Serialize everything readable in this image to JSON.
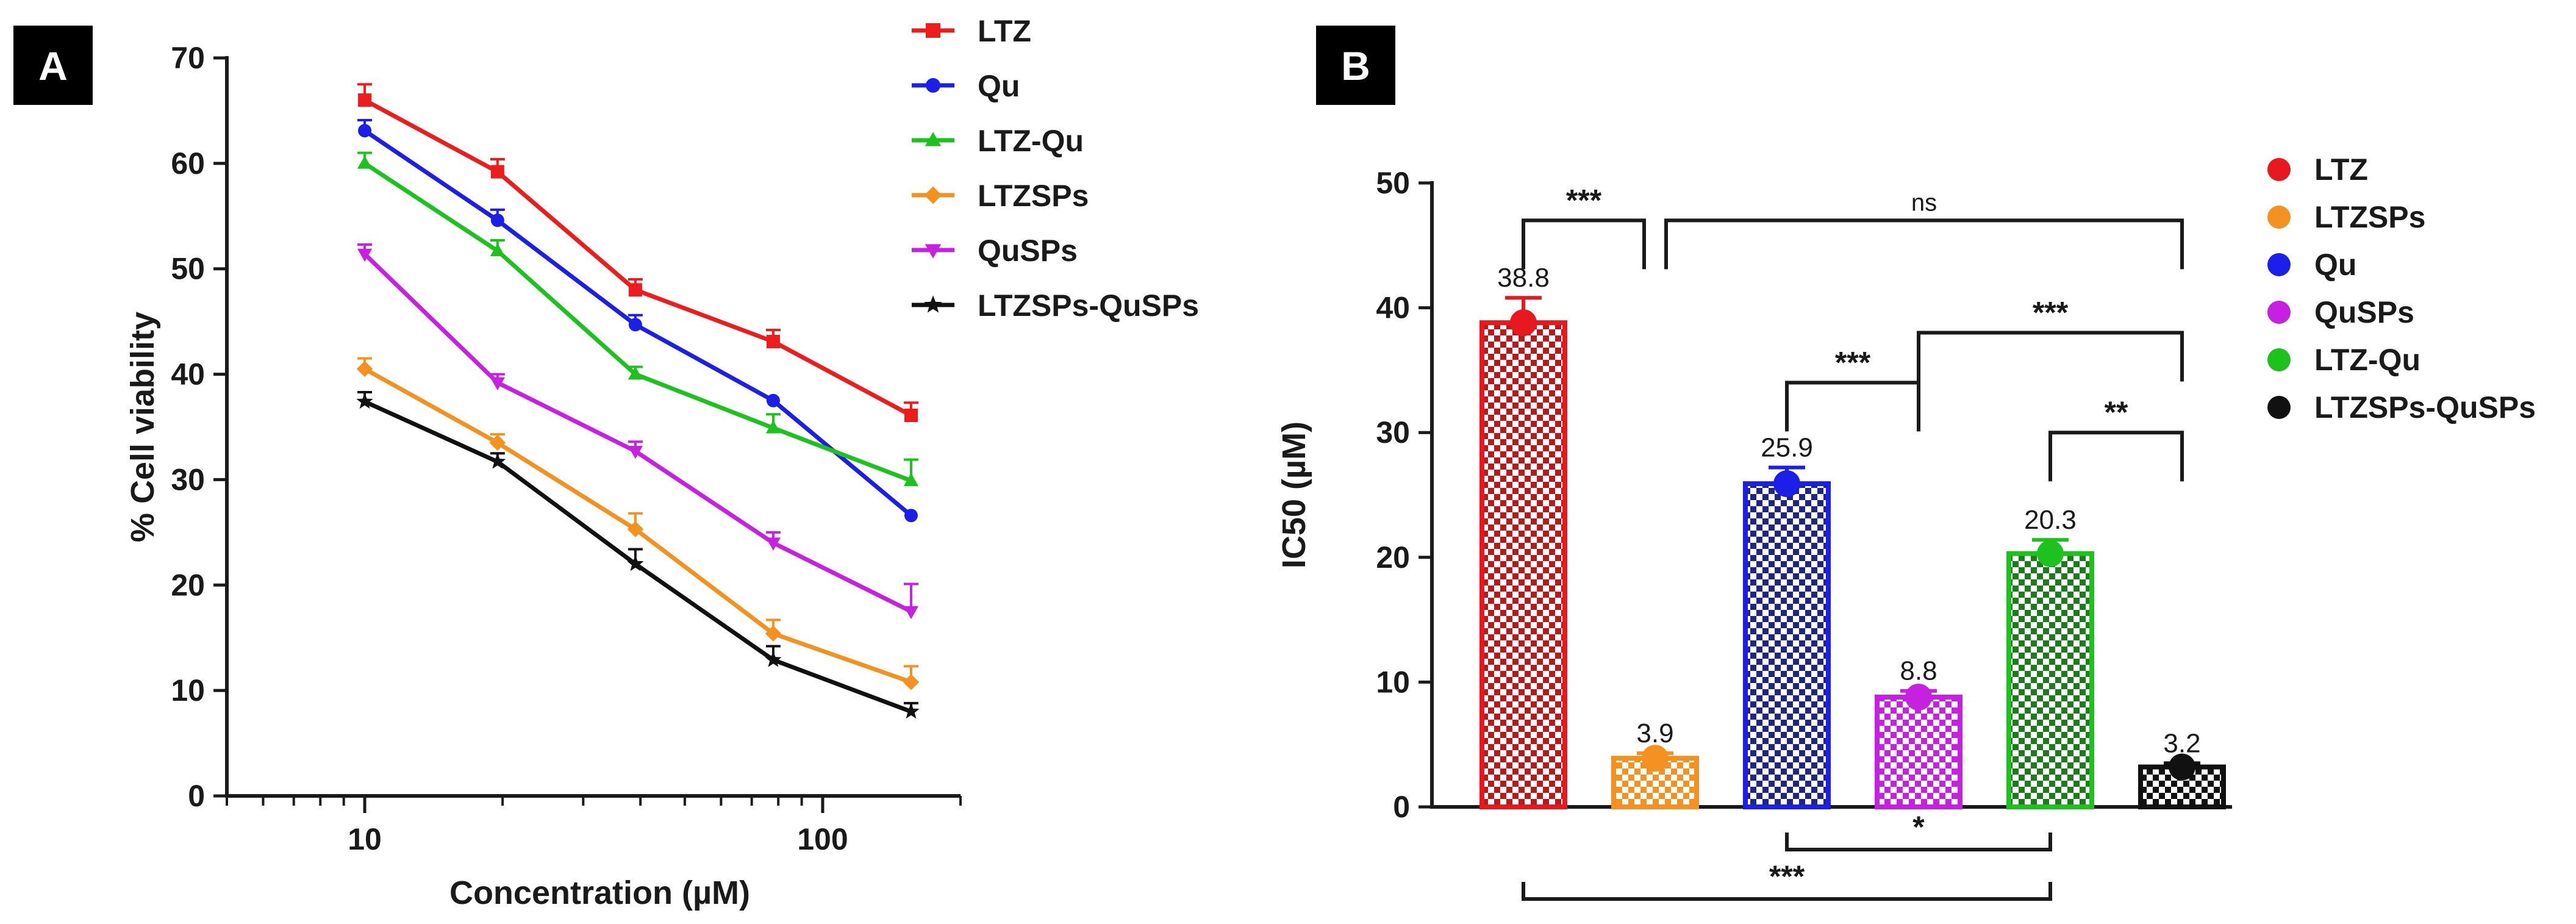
{
  "panel_labels": {
    "a": "A",
    "b": "B"
  },
  "chart_data": [
    {
      "type": "line",
      "panel": "A",
      "xlabel": "Concentration (µM)",
      "ylabel": "% Cell viability",
      "xscale": "log",
      "xlim": [
        5,
        200
      ],
      "ylim": [
        0,
        70
      ],
      "yticks": [
        0,
        10,
        20,
        30,
        40,
        50,
        60,
        70
      ],
      "xtick_labels": [
        {
          "value": 10,
          "label": "10"
        },
        {
          "value": 100,
          "label": "100"
        }
      ],
      "x": [
        10,
        19.5,
        39,
        78,
        156
      ],
      "legend_position": "top-right",
      "series": [
        {
          "name": "LTZ",
          "color": "#ee1c1c",
          "marker": "square",
          "values": [
            66.0,
            59.2,
            48.0,
            43.1,
            36.1
          ],
          "errors": [
            1.5,
            1.2,
            1.0,
            1.1,
            1.2
          ]
        },
        {
          "name": "Qu",
          "color": "#1b1fe8",
          "marker": "circle",
          "values": [
            63.1,
            54.6,
            44.7,
            37.5,
            26.6
          ],
          "errors": [
            1.0,
            1.0,
            0.9,
            0.0,
            0.0
          ]
        },
        {
          "name": "LTZ-Qu",
          "color": "#1ec21e",
          "marker": "triangle-up",
          "values": [
            60.0,
            51.7,
            40.0,
            34.9,
            29.9
          ],
          "errors": [
            1.0,
            1.0,
            0.7,
            1.3,
            2.0
          ]
        },
        {
          "name": "LTZSPs",
          "color": "#f39220",
          "marker": "diamond",
          "values": [
            40.5,
            33.5,
            25.3,
            15.4,
            10.8
          ],
          "errors": [
            1.0,
            0.8,
            1.5,
            1.3,
            1.5
          ]
        },
        {
          "name": "QuSPs",
          "color": "#c620e0",
          "marker": "triangle-down",
          "values": [
            51.4,
            39.2,
            32.7,
            24.0,
            17.5
          ],
          "errors": [
            0.9,
            0.8,
            0.9,
            1.0,
            2.6
          ]
        },
        {
          "name": "LTZSPs-QuSPs",
          "color": "#111111",
          "marker": "star",
          "values": [
            37.4,
            31.7,
            22.0,
            12.9,
            8.0
          ],
          "errors": [
            0.9,
            0.8,
            1.4,
            1.3,
            0.8
          ]
        }
      ]
    },
    {
      "type": "bar",
      "panel": "B",
      "ylabel": "IC50 (µM)",
      "ylim": [
        0,
        50
      ],
      "yticks": [
        0,
        10,
        20,
        30,
        40,
        50
      ],
      "legend_position": "right",
      "bars": [
        {
          "name": "LTZ",
          "value": 38.8,
          "error": 2.0,
          "label": "38.8",
          "color": "#e8191e",
          "fill": "#b71a1a",
          "pattern": "checker"
        },
        {
          "name": "LTZSPs",
          "value": 3.9,
          "error": 0.4,
          "label": "3.9",
          "color": "#f39220",
          "fill": "#f39220",
          "pattern": "checker"
        },
        {
          "name": "Qu",
          "value": 25.9,
          "error": 1.3,
          "label": "25.9",
          "color": "#1b1fe8",
          "fill": "#1f2680",
          "pattern": "checker"
        },
        {
          "name": "QuSPs",
          "value": 8.8,
          "error": 0.5,
          "label": "8.8",
          "color": "#c620e0",
          "fill": "#c620e0",
          "pattern": "checker"
        },
        {
          "name": "LTZ-Qu",
          "value": 20.3,
          "error": 1.1,
          "label": "20.3",
          "color": "#1ec21e",
          "fill": "#1d7a1d",
          "pattern": "checker"
        },
        {
          "name": "LTZSPs-QuSPs",
          "value": 3.2,
          "error": 0.3,
          "label": "3.2",
          "color": "#111111",
          "fill": "#111111",
          "pattern": "checker"
        }
      ],
      "legend_order": [
        "LTZ",
        "LTZSPs",
        "Qu",
        "QuSPs",
        "LTZ-Qu",
        "LTZSPs-QuSPs"
      ],
      "significance": [
        {
          "from": 0,
          "to": 1,
          "label": "***",
          "level": 47
        },
        {
          "from": 1,
          "to": 5,
          "label": "ns",
          "level": 47
        },
        {
          "from": 3,
          "to": 5,
          "label": "***",
          "level": 38
        },
        {
          "from": 2,
          "to": 3,
          "label": "***",
          "level": 34
        },
        {
          "from": 4,
          "to": 5,
          "label": "**",
          "level": 30
        },
        {
          "from": 2,
          "to": 4,
          "label": "*",
          "level": -3.5
        },
        {
          "from": 0,
          "to": 4,
          "label": "***",
          "level": -7.5
        }
      ]
    }
  ]
}
